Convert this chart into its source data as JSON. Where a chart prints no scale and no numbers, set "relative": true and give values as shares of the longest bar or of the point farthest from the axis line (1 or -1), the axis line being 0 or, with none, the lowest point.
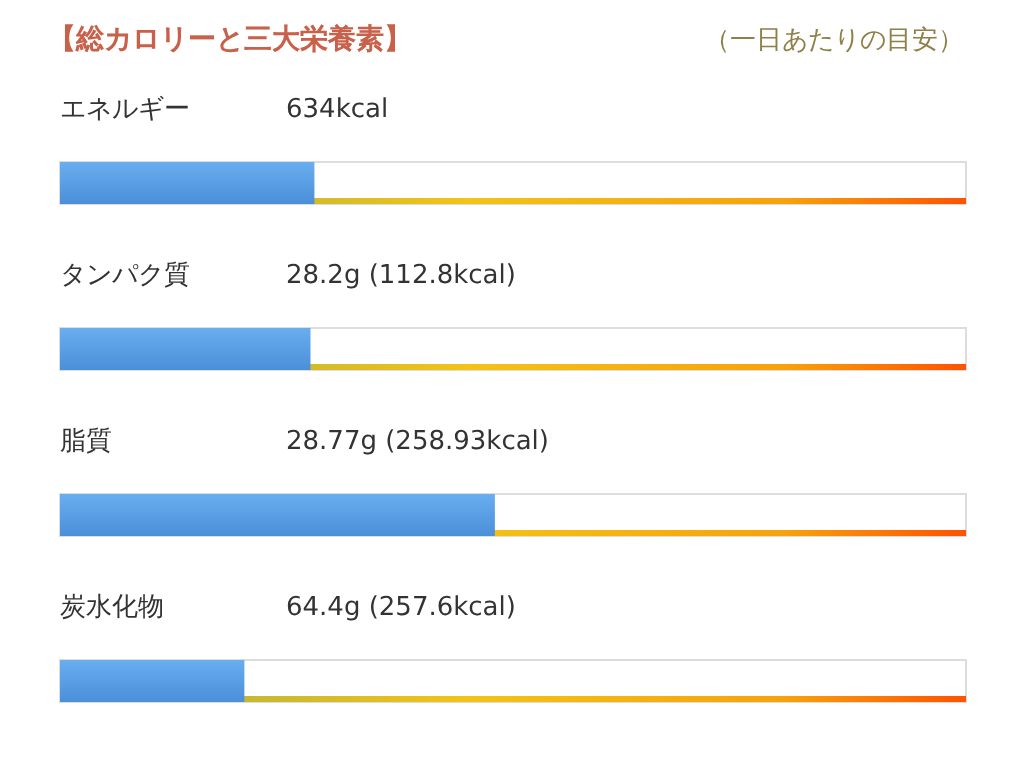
{
  "chart_data": {
    "type": "bar",
    "orientation": "horizontal",
    "relative": true,
    "title": "【総カロリーと三大栄養素】",
    "subtitle": "（一日あたりの目安）",
    "categories": [
      "エネルギー",
      "タンパク質",
      "脂質",
      "炭水化物"
    ],
    "values": [
      0.585,
      0.576,
      1,
      0.424
    ],
    "annotations": [
      "634kcal",
      "28.2g (112.8kcal)",
      "28.77g (258.93kcal)",
      "64.4g (257.6kcal)"
    ],
    "color": "#4a8fd8"
  }
}
